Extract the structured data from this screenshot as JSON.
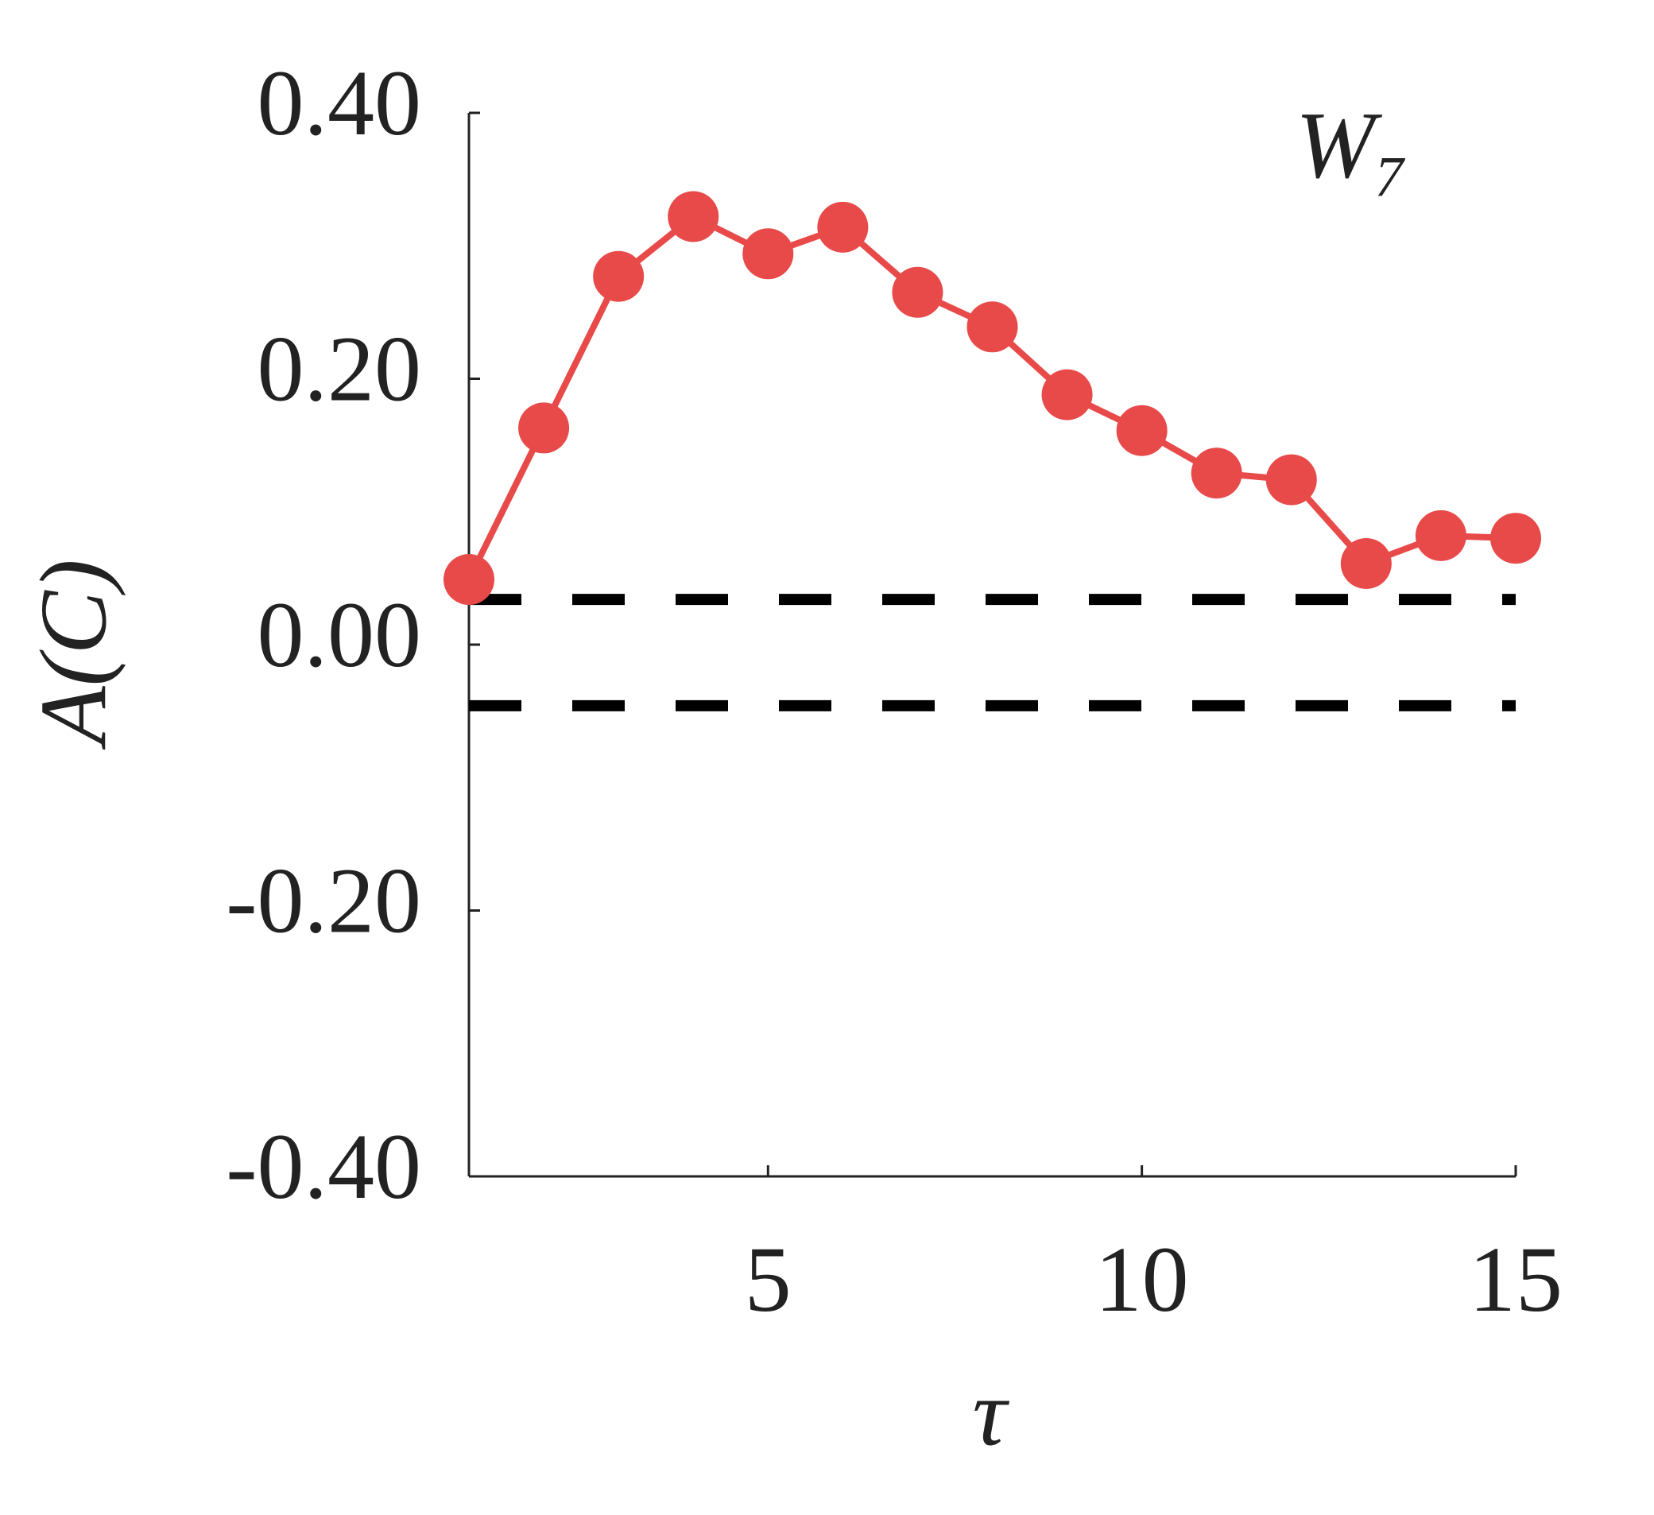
{
  "chart_data": {
    "type": "line",
    "annotation": "W₇",
    "xlabel": "τ",
    "ylabel": "A(C)",
    "x": [
      1,
      2,
      3,
      4,
      5,
      6,
      7,
      8,
      9,
      10,
      11,
      12,
      13,
      14,
      15
    ],
    "series": [
      {
        "color": "#e84a4a",
        "values": [
          0.049,
          0.163,
          0.277,
          0.322,
          0.294,
          0.314,
          0.265,
          0.239,
          0.188,
          0.161,
          0.129,
          0.124,
          0.061,
          0.082,
          0.08
        ]
      }
    ],
    "hlines": [
      0.034,
      -0.046
    ],
    "hline_color": "#000000",
    "xlim": [
      1,
      15
    ],
    "xticks": [
      5,
      10,
      15
    ],
    "ylim": [
      -0.4,
      0.4
    ],
    "yticks": [
      {
        "value": -0.4,
        "label": "-0.40"
      },
      {
        "value": -0.2,
        "label": "-0.20"
      },
      {
        "value": 0,
        "label": "0.00"
      },
      {
        "value": 0.2,
        "label": "0.20"
      },
      {
        "value": 0.4,
        "label": "0.40"
      }
    ]
  }
}
